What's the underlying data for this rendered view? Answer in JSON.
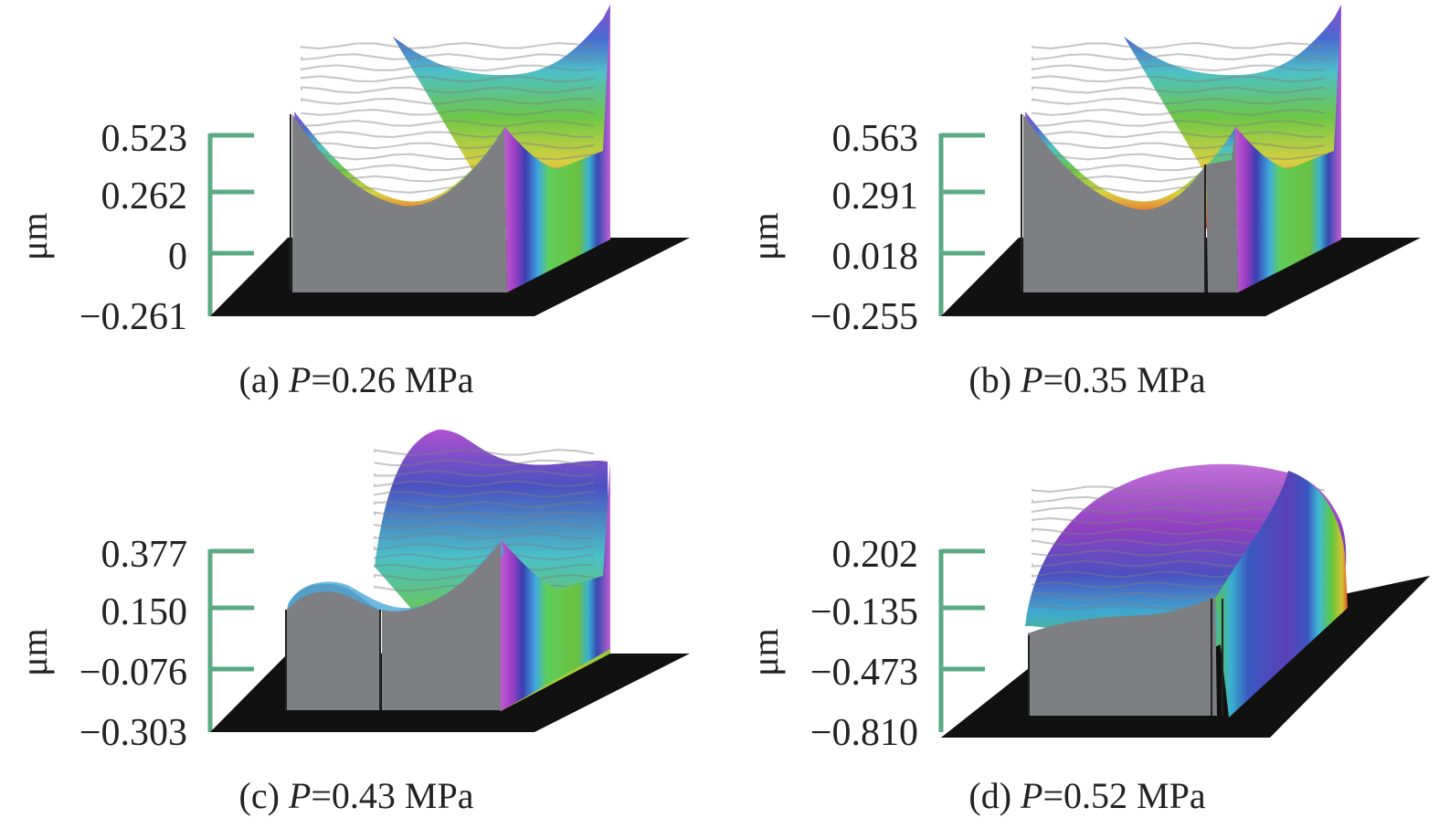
{
  "chart_data": [
    {
      "type": "surface3d",
      "id": "a",
      "caption_prefix": "(a)",
      "caption_var": "P",
      "caption_value": "=0.26 MPa",
      "unit": "μm",
      "zticks": [
        "0.523",
        "0.262",
        "0",
        "−0.261"
      ],
      "zlim": [
        -0.261,
        0.523
      ],
      "shape": "valley"
    },
    {
      "type": "surface3d",
      "id": "b",
      "caption_prefix": "(b)",
      "caption_var": "P",
      "caption_value": "=0.35 MPa",
      "unit": "μm",
      "zticks": [
        "0.563",
        "0.291",
        "0.018",
        "−0.255"
      ],
      "zlim": [
        -0.255,
        0.563
      ],
      "shape": "valley"
    },
    {
      "type": "surface3d",
      "id": "c",
      "caption_prefix": "(c)",
      "caption_var": "P",
      "caption_value": "=0.43 MPa",
      "unit": "μm",
      "zticks": [
        "0.377",
        "0.150",
        "−0.076",
        "−0.303"
      ],
      "zlim": [
        -0.303,
        0.377
      ],
      "shape": "ridge"
    },
    {
      "type": "surface3d",
      "id": "d",
      "caption_prefix": "(d)",
      "caption_var": "P",
      "caption_value": "=0.52 MPa",
      "unit": "μm",
      "zticks": [
        "0.202",
        "−0.135",
        "−0.473",
        "−0.810"
      ],
      "zlim": [
        -0.81,
        0.202
      ],
      "shape": "dome"
    }
  ],
  "colors": {
    "axis": "#5aab84",
    "base": "#111111",
    "side": "#7d7f83"
  }
}
